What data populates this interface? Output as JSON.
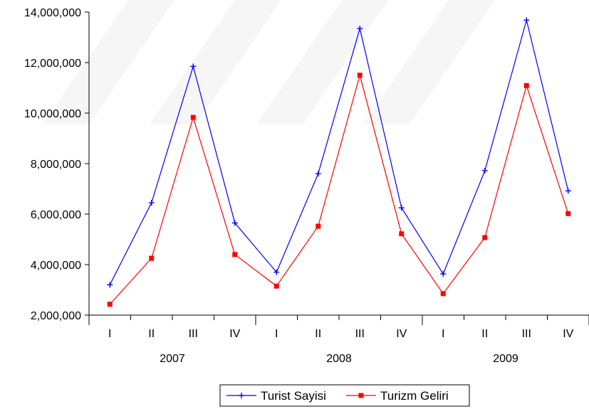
{
  "chart_data": {
    "type": "line",
    "title": "",
    "xlabel": "",
    "ylabel": "",
    "ylim": [
      2000000,
      14000000
    ],
    "y_ticks": [
      "2,000,000",
      "4,000,000",
      "6,000,000",
      "8,000,000",
      "10,000,000",
      "12,000,000",
      "14,000,000"
    ],
    "y_tick_values": [
      2000000,
      4000000,
      6000000,
      8000000,
      10000000,
      12000000,
      14000000
    ],
    "categories": [
      "I",
      "II",
      "III",
      "IV",
      "I",
      "II",
      "III",
      "IV",
      "I",
      "II",
      "III",
      "IV"
    ],
    "years": [
      "2007",
      "2008",
      "2009"
    ],
    "grid": false,
    "legend_position": "bottom-center",
    "series": [
      {
        "name": "Turist Sayisi",
        "color": "#0000ff",
        "marker": "plus",
        "values": [
          3200000,
          6450000,
          11850000,
          5650000,
          3700000,
          7600000,
          13350000,
          6250000,
          3630000,
          7720000,
          13680000,
          6920000
        ]
      },
      {
        "name": "Turizm Geliri",
        "color": "#ff0000",
        "marker": "square",
        "values": [
          2430000,
          4250000,
          9830000,
          4400000,
          3150000,
          5520000,
          11500000,
          5220000,
          2850000,
          5070000,
          11090000,
          6020000
        ]
      }
    ]
  }
}
